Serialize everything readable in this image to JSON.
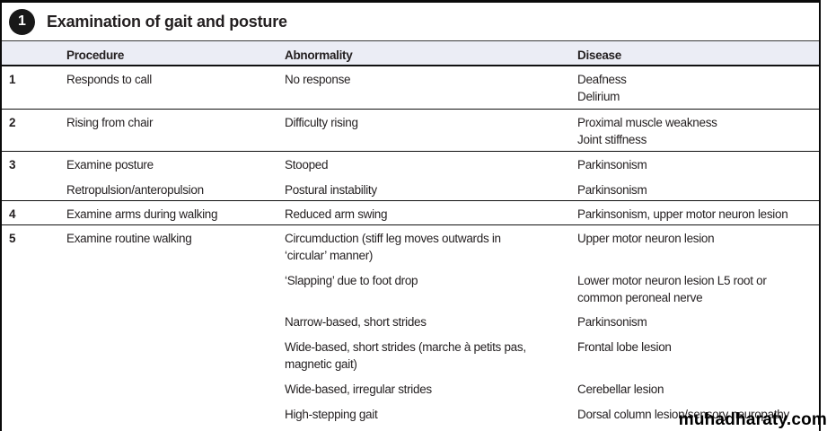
{
  "title_bar": {
    "badge": "1",
    "title": "Examination of gait and posture"
  },
  "header": {
    "procedure": "Procedure",
    "abnormality": "Abnormality",
    "disease": "Disease"
  },
  "rows": [
    {
      "num": "1",
      "procedure": "Responds to call",
      "abnormality": "No response",
      "disease": "Deafness\nDelirium"
    },
    {
      "num": "2",
      "procedure": "Rising from chair",
      "abnormality": "Difficulty rising",
      "disease": "Proximal muscle weakness\nJoint stiffness"
    },
    {
      "num": "3",
      "subs": [
        {
          "procedure": "Examine posture",
          "abnormality": "Stooped",
          "disease": "Parkinsonism"
        },
        {
          "procedure": "Retropulsion/anteropulsion",
          "abnormality": "Postural instability",
          "disease": "Parkinsonism"
        }
      ]
    },
    {
      "num": "4",
      "procedure": "Examine arms during walking",
      "abnormality": "Reduced arm swing",
      "disease": "Parkinsonism, upper motor neuron lesion"
    },
    {
      "num": "5",
      "procedure": "Examine routine walking",
      "subs": [
        {
          "abnormality": "Circumduction (stiff leg moves outwards in ‘circular’ manner)",
          "disease": "Upper motor neuron lesion"
        },
        {
          "abnormality": "‘Slapping’ due to foot drop",
          "disease": "Lower motor neuron lesion L5 root or common peroneal nerve"
        },
        {
          "abnormality": "Narrow-based, short strides",
          "disease": "Parkinsonism"
        },
        {
          "abnormality": "Wide-based, short strides (marche à petits pas, magnetic gait)",
          "disease": "Frontal lobe lesion"
        },
        {
          "abnormality": "Wide-based, irregular strides",
          "disease": "Cerebellar lesion"
        },
        {
          "abnormality": "High-stepping gait",
          "disease": "Dorsal column lesion/sensory neuropathy"
        }
      ]
    }
  ],
  "watermark": "muhadharaty.com",
  "colors": {
    "header_bg": "#ebedf5",
    "text": "#231f20",
    "line": "#111111",
    "badge_bg": "#181818"
  }
}
